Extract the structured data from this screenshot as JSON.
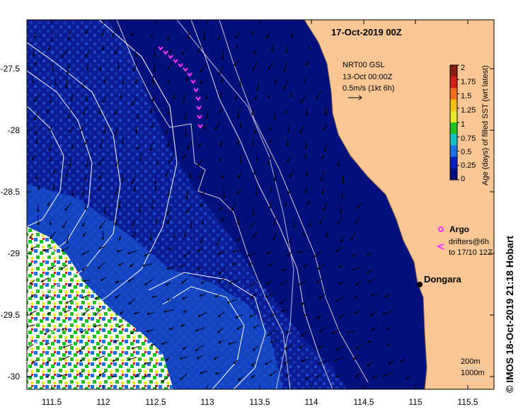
{
  "map": {
    "title": "17-Oct-2019 00Z",
    "land_color": "#f9c796",
    "sea_base_color": "#05107f",
    "x_ticks": [
      "111.5",
      "112",
      "112.5",
      "113",
      "113.5",
      "114",
      "114.5",
      "115",
      "115.5"
    ],
    "y_ticks": [
      "-27.5",
      "-28",
      "-28.5",
      "-29",
      "-29.5",
      "-30"
    ],
    "product_label": {
      "line1": "NRT00 GSL",
      "line2": "13-Oct 00:00Z",
      "line3": "0.5m/s (1kt 6h)"
    },
    "place": {
      "name": "Dongara"
    },
    "legend": {
      "argo": "Argo",
      "drifters_line1": "drifters@6h",
      "drifters_line2": "to 17/10 12Z",
      "argo_color": "#ff33ff",
      "drifter_color": "#ff33ff"
    },
    "depth_labels": {
      "a": "200m",
      "b": "1000m"
    },
    "credit": "© IMOS 18-Oct-2019 21:18 Hobart"
  },
  "colorbar": {
    "title": "Age (days) of filled SST (wrt latest)",
    "ticks": [
      "2",
      "1.75",
      "1.5",
      "1.25",
      "1",
      "0.75",
      "0.5",
      "0.25",
      "0"
    ],
    "colors": [
      "#8b1a10",
      "#d0201a",
      "#f07020",
      "#f5c010",
      "#e8e830",
      "#20c020",
      "#18c0c0",
      "#1a70e0",
      "#0c20c0",
      "#05107f"
    ]
  }
}
